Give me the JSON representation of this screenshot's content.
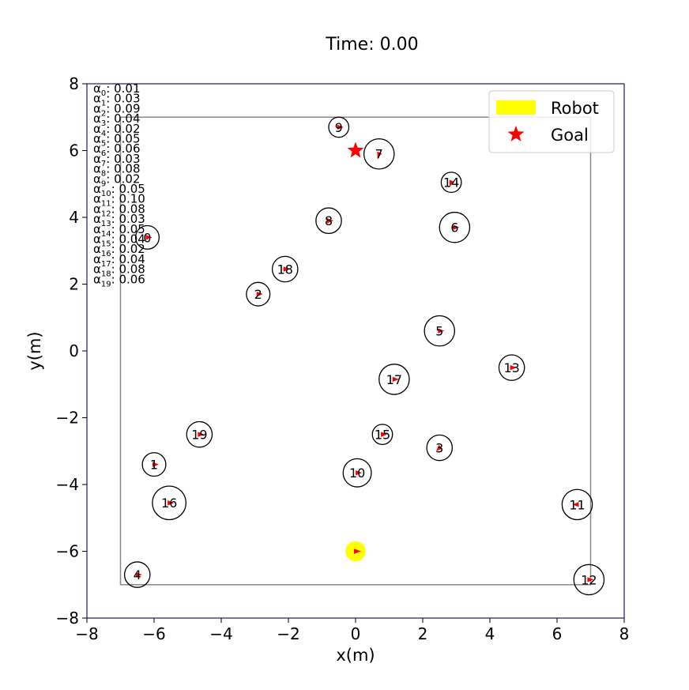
{
  "chart_data": {
    "type": "scatter",
    "title": "Time: 0.00",
    "xlabel": "x(m)",
    "ylabel": "y(m)",
    "xlim": [
      -8,
      8
    ],
    "ylim": [
      -8,
      8
    ],
    "xticks": [
      "−8",
      "−6",
      "−4",
      "−2",
      "0",
      "2",
      "4",
      "6",
      "8"
    ],
    "yticks": [
      "−8",
      "−6",
      "−4",
      "−2",
      "0",
      "2",
      "4",
      "6",
      "8"
    ],
    "xtick_values": [
      -8,
      -6,
      -4,
      -2,
      0,
      2,
      4,
      6,
      8
    ],
    "ytick_values": [
      -8,
      -6,
      -4,
      -2,
      0,
      2,
      4,
      6,
      8
    ],
    "boundary": {
      "xmin": -7,
      "xmax": 7,
      "ymin": -7,
      "ymax": 7
    },
    "legend": {
      "placement": "top-right",
      "entries": [
        {
          "label": "Robot",
          "color": "#ffff00",
          "marker": "rectangle"
        },
        {
          "label": "Goal",
          "color": "#ff0000",
          "marker": "star"
        }
      ]
    },
    "robot": {
      "x": 0.0,
      "y": -6.0,
      "radius": 0.3,
      "color": "#ffff00",
      "heading_deg": 0
    },
    "goal": {
      "x": 0.0,
      "y": 6.0,
      "color": "#ff0000"
    },
    "humans": [
      {
        "id": "0",
        "x": -6.2,
        "y": 3.4,
        "r": 0.35,
        "heading_deg": 0
      },
      {
        "id": "1",
        "x": -6.0,
        "y": -3.4,
        "r": 0.35,
        "heading_deg": 0
      },
      {
        "id": "2",
        "x": -2.9,
        "y": 1.7,
        "r": 0.35,
        "heading_deg": 0
      },
      {
        "id": "3",
        "x": 2.5,
        "y": -2.9,
        "r": 0.38,
        "heading_deg": 225
      },
      {
        "id": "4",
        "x": -6.5,
        "y": -6.7,
        "r": 0.38,
        "heading_deg": 0
      },
      {
        "id": "5",
        "x": 2.5,
        "y": 0.6,
        "r": 0.45,
        "heading_deg": 0
      },
      {
        "id": "6",
        "x": 2.95,
        "y": 3.7,
        "r": 0.45,
        "heading_deg": 0
      },
      {
        "id": "7",
        "x": 0.7,
        "y": 5.9,
        "r": 0.45,
        "heading_deg": 250
      },
      {
        "id": "8",
        "x": -0.8,
        "y": 3.9,
        "r": 0.38,
        "heading_deg": 0
      },
      {
        "id": "9",
        "x": -0.5,
        "y": 6.7,
        "r": 0.3,
        "heading_deg": 0
      },
      {
        "id": "10",
        "x": 0.05,
        "y": -3.65,
        "r": 0.42,
        "heading_deg": 0
      },
      {
        "id": "11",
        "x": 6.6,
        "y": -4.6,
        "r": 0.45,
        "heading_deg": 180
      },
      {
        "id": "12",
        "x": 6.95,
        "y": -6.85,
        "r": 0.45,
        "heading_deg": 0
      },
      {
        "id": "13",
        "x": 4.65,
        "y": -0.5,
        "r": 0.38,
        "heading_deg": 0
      },
      {
        "id": "14",
        "x": 2.85,
        "y": 5.05,
        "r": 0.3,
        "heading_deg": 250
      },
      {
        "id": "15",
        "x": 0.8,
        "y": -2.5,
        "r": 0.3,
        "heading_deg": 0
      },
      {
        "id": "16",
        "x": -5.55,
        "y": -4.55,
        "r": 0.5,
        "heading_deg": 0
      },
      {
        "id": "17",
        "x": 1.15,
        "y": -0.85,
        "r": 0.45,
        "heading_deg": 0
      },
      {
        "id": "18",
        "x": -2.1,
        "y": 2.45,
        "r": 0.38,
        "heading_deg": 0
      },
      {
        "id": "19",
        "x": -4.65,
        "y": -2.5,
        "r": 0.38,
        "heading_deg": 0
      }
    ],
    "annotations": [
      {
        "sub": "0",
        "value": ": 0.01"
      },
      {
        "sub": "1",
        "value": ": 0.03"
      },
      {
        "sub": "2",
        "value": ": 0.09"
      },
      {
        "sub": "3",
        "value": ": 0.04"
      },
      {
        "sub": "4",
        "value": ": 0.02"
      },
      {
        "sub": "5",
        "value": ": 0.05"
      },
      {
        "sub": "6",
        "value": ": 0.06"
      },
      {
        "sub": "7",
        "value": ": 0.03"
      },
      {
        "sub": "8",
        "value": ": 0.08"
      },
      {
        "sub": "9",
        "value": ": 0.02"
      },
      {
        "sub": "10",
        "value": ": 0.05"
      },
      {
        "sub": "11",
        "value": ": 0.10"
      },
      {
        "sub": "12",
        "value": ": 0.08"
      },
      {
        "sub": "13",
        "value": ": 0.03"
      },
      {
        "sub": "14",
        "value": ": 0.05"
      },
      {
        "sub": "15",
        "value": ": 0.04"
      },
      {
        "sub": "16",
        "value": ": 0.02"
      },
      {
        "sub": "17",
        "value": ": 0.04"
      },
      {
        "sub": "18",
        "value": ": 0.08"
      },
      {
        "sub": "19",
        "value": ": 0.06"
      }
    ],
    "grid": false,
    "colors": {
      "axes": "#1a1a6e",
      "boundary": "#888888",
      "human": "#000000",
      "arrow": "#ff0000"
    }
  }
}
